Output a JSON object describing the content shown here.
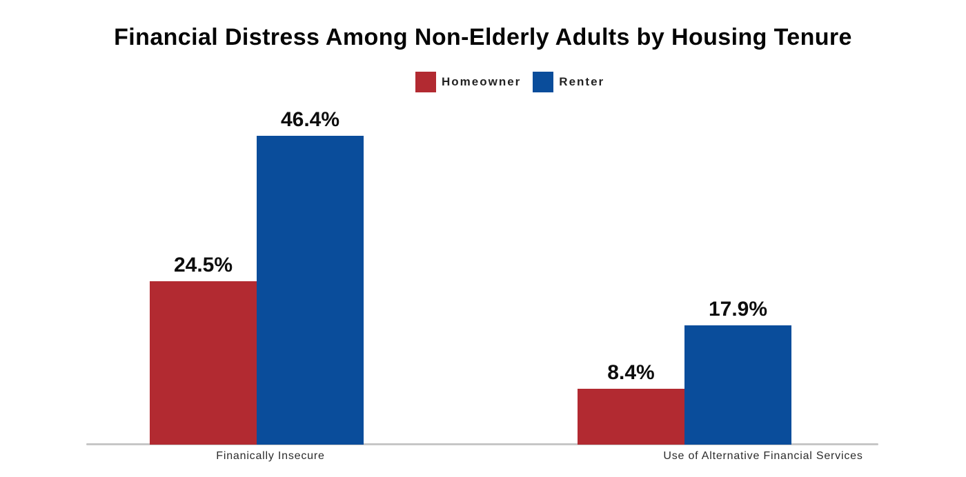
{
  "chart_data": {
    "type": "bar",
    "title": "Financial Distress Among Non-Elderly Adults by Housing Tenure",
    "categories": [
      "Finanically Insecure",
      "Use of Alternative Financial Services"
    ],
    "series": [
      {
        "name": "Homeowner",
        "color": "#b22a31",
        "values": [
          24.5,
          8.4
        ],
        "labels": [
          "24.5%",
          "8.4%"
        ]
      },
      {
        "name": "Renter",
        "color": "#0a4d9b",
        "values": [
          46.4,
          17.9
        ],
        "labels": [
          "46.4%",
          "17.9%"
        ]
      }
    ],
    "ylim": [
      0,
      50
    ],
    "grid": false,
    "legend_position": "top-center",
    "axis_line_color": "#c6c6c6",
    "value_label_color": "#0d0d0d",
    "category_label_color": "#2b2b2b",
    "background_color": "#ffffff"
  }
}
